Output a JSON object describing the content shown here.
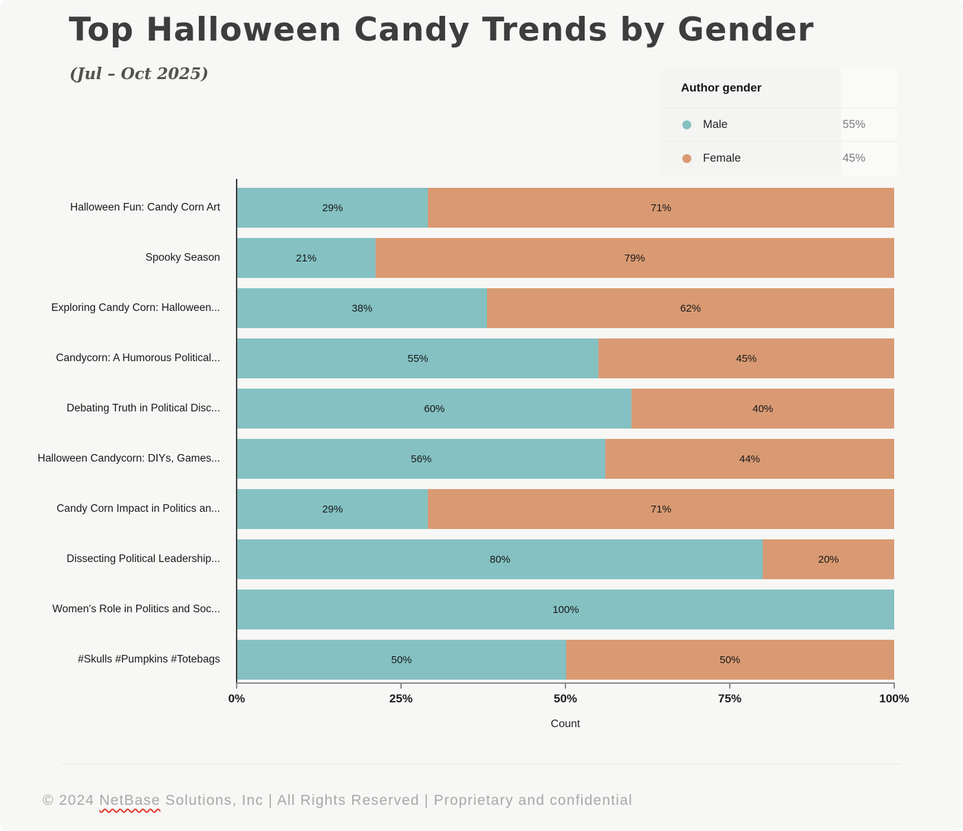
{
  "page": {
    "title": "Top Halloween Candy Trends by Gender",
    "subtitle": "(Jul – Oct 2025)",
    "footer": {
      "prefix": "© 2024 ",
      "brand": "NetBase",
      "suffix": " Solutions, Inc | All Rights Reserved | Proprietary and confidential"
    }
  },
  "legend": {
    "title": "Author gender",
    "items": [
      {
        "label": "Male",
        "percent": "55%",
        "color": "#85c1c3"
      },
      {
        "label": "Female",
        "percent": "45%",
        "color": "#d99a73"
      }
    ]
  },
  "chart_data": {
    "type": "bar",
    "orientation": "horizontal",
    "stacked": true,
    "units": "percent",
    "title": "Top Halloween Candy Trends by Gender",
    "xlabel": "Count",
    "ylabel": "",
    "xlim": [
      0,
      100
    ],
    "x_ticks": [
      "0%",
      "25%",
      "50%",
      "75%",
      "100%"
    ],
    "grid": false,
    "legend_position": "top-right",
    "categories": [
      "Halloween Fun: Candy Corn Art",
      "Spooky Season",
      "Exploring Candy Corn: Halloween...",
      "Candycorn: A Humorous Political...",
      "Debating Truth in Political Disc...",
      "Halloween Candycorn: DIYs, Games...",
      "Candy Corn Impact in Politics an...",
      "Dissecting Political Leadership...",
      "Women's Role in Politics and Soc...",
      "#Skulls #Pumpkins #Totebags"
    ],
    "series": [
      {
        "name": "Male",
        "color": "#85c1c3",
        "values": [
          29,
          21,
          38,
          55,
          60,
          56,
          29,
          80,
          100,
          50
        ]
      },
      {
        "name": "Female",
        "color": "#d99a73",
        "values": [
          71,
          79,
          62,
          45,
          40,
          44,
          71,
          20,
          0,
          50
        ]
      }
    ]
  }
}
